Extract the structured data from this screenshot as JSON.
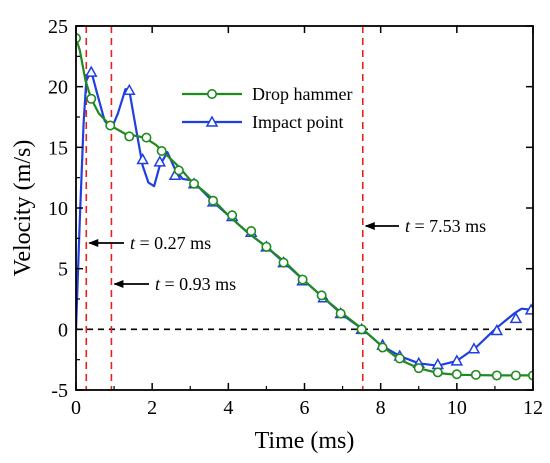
{
  "chart_data": {
    "type": "line",
    "xlabel": "Time (ms)",
    "ylabel": "Velocity (m/s)",
    "xlim": [
      0,
      12
    ],
    "ylim": [
      -5,
      25
    ],
    "xticks": [
      0,
      2,
      4,
      6,
      8,
      10,
      12
    ],
    "yticks": [
      -5,
      0,
      5,
      10,
      15,
      20,
      25
    ],
    "legend_position": "top-center",
    "grid": false,
    "reference_line": {
      "y": 0,
      "style": "dashed",
      "color": "#000000"
    },
    "vertical_markers": [
      {
        "x": 0.27,
        "label_prefix": "t",
        "label_value": "= 0.27 ms",
        "color": "#e8201c"
      },
      {
        "x": 0.93,
        "label_prefix": "t",
        "label_value": "= 0.93 ms",
        "color": "#e8201c"
      },
      {
        "x": 7.53,
        "label_prefix": "t",
        "label_value": "= 7.53 ms",
        "color": "#e8201c"
      }
    ],
    "series": [
      {
        "name": "Drop hammer",
        "color": "#1f8a1f",
        "marker": "circle",
        "curve": [
          [
            0,
            24
          ],
          [
            0.1,
            23
          ],
          [
            0.25,
            20.5
          ],
          [
            0.4,
            19
          ],
          [
            0.6,
            17.8
          ],
          [
            0.9,
            16.8
          ],
          [
            1.3,
            16.1
          ],
          [
            1.8,
            15.8
          ],
          [
            2.1,
            15.2
          ],
          [
            2.4,
            14.3
          ],
          [
            2.7,
            13.4
          ],
          [
            3.0,
            12.3
          ],
          [
            3.5,
            11.0
          ],
          [
            4.0,
            9.4
          ],
          [
            4.5,
            8.0
          ],
          [
            5.0,
            6.8
          ],
          [
            5.5,
            5.5
          ],
          [
            6.0,
            4.0
          ],
          [
            6.5,
            2.6
          ],
          [
            7.0,
            1.3
          ],
          [
            7.53,
            0
          ],
          [
            8.0,
            -1.3
          ],
          [
            8.5,
            -2.5
          ],
          [
            9.0,
            -3.2
          ],
          [
            9.5,
            -3.6
          ],
          [
            10.0,
            -3.75
          ],
          [
            11.0,
            -3.8
          ],
          [
            12.0,
            -3.8
          ]
        ],
        "markers": [
          [
            0,
            24
          ],
          [
            0.4,
            19
          ],
          [
            0.9,
            16.8
          ],
          [
            1.4,
            15.9
          ],
          [
            1.85,
            15.8
          ],
          [
            2.25,
            14.7
          ],
          [
            2.7,
            13.1
          ],
          [
            3.1,
            12.0
          ],
          [
            3.6,
            10.6
          ],
          [
            4.1,
            9.4
          ],
          [
            4.6,
            8.1
          ],
          [
            5.0,
            6.8
          ],
          [
            5.45,
            5.5
          ],
          [
            5.95,
            4.1
          ],
          [
            6.45,
            2.8
          ],
          [
            6.95,
            1.3
          ],
          [
            7.5,
            0
          ],
          [
            8.05,
            -1.5
          ],
          [
            8.5,
            -2.4
          ],
          [
            9.0,
            -3.2
          ],
          [
            9.5,
            -3.55
          ],
          [
            10.0,
            -3.7
          ],
          [
            10.5,
            -3.75
          ],
          [
            11.05,
            -3.8
          ],
          [
            11.55,
            -3.8
          ],
          [
            12.0,
            -3.8
          ]
        ]
      },
      {
        "name": "Impact point",
        "color": "#1f3fe0",
        "marker": "triangle",
        "curve": [
          [
            0,
            0
          ],
          [
            0.1,
            9
          ],
          [
            0.2,
            17
          ],
          [
            0.27,
            20.5
          ],
          [
            0.4,
            21.3
          ],
          [
            0.55,
            19.5
          ],
          [
            0.75,
            17.2
          ],
          [
            0.93,
            16.5
          ],
          [
            1.1,
            17.8
          ],
          [
            1.3,
            19.8
          ],
          [
            1.4,
            19.7
          ],
          [
            1.55,
            17
          ],
          [
            1.75,
            13.5
          ],
          [
            1.9,
            12.1
          ],
          [
            2.05,
            11.8
          ],
          [
            2.2,
            13.5
          ],
          [
            2.4,
            14.6
          ],
          [
            2.6,
            13.2
          ],
          [
            2.8,
            12.4
          ],
          [
            3.0,
            12.3
          ],
          [
            3.2,
            11.8
          ],
          [
            3.6,
            10.5
          ],
          [
            4.0,
            9.4
          ],
          [
            4.5,
            8.0
          ],
          [
            5.0,
            6.8
          ],
          [
            5.5,
            5.4
          ],
          [
            6.0,
            4.0
          ],
          [
            6.5,
            2.6
          ],
          [
            7.0,
            1.2
          ],
          [
            7.53,
            0
          ],
          [
            8.0,
            -1.3
          ],
          [
            8.5,
            -2.2
          ],
          [
            9.0,
            -2.8
          ],
          [
            9.5,
            -3.0
          ],
          [
            10.0,
            -2.6
          ],
          [
            10.5,
            -1.5
          ],
          [
            11.0,
            0.0
          ],
          [
            11.5,
            1.3
          ],
          [
            11.7,
            1.7
          ],
          [
            12.0,
            1.6
          ]
        ],
        "markers": [
          [
            0.4,
            21.2
          ],
          [
            1.4,
            19.7
          ],
          [
            1.75,
            14.0
          ],
          [
            2.2,
            13.8
          ],
          [
            2.6,
            12.7
          ],
          [
            3.1,
            12.0
          ],
          [
            3.6,
            10.5
          ],
          [
            4.1,
            9.3
          ],
          [
            4.6,
            8.0
          ],
          [
            5.0,
            6.8
          ],
          [
            5.45,
            5.5
          ],
          [
            5.95,
            4.0
          ],
          [
            6.5,
            2.6
          ],
          [
            6.95,
            1.3
          ],
          [
            7.5,
            0
          ],
          [
            8.05,
            -1.3
          ],
          [
            8.5,
            -2.2
          ],
          [
            9.0,
            -2.8
          ],
          [
            9.5,
            -2.9
          ],
          [
            10.0,
            -2.6
          ],
          [
            10.45,
            -1.6
          ],
          [
            11.05,
            -0.1
          ],
          [
            11.55,
            0.9
          ],
          [
            11.95,
            1.6
          ]
        ]
      }
    ]
  }
}
